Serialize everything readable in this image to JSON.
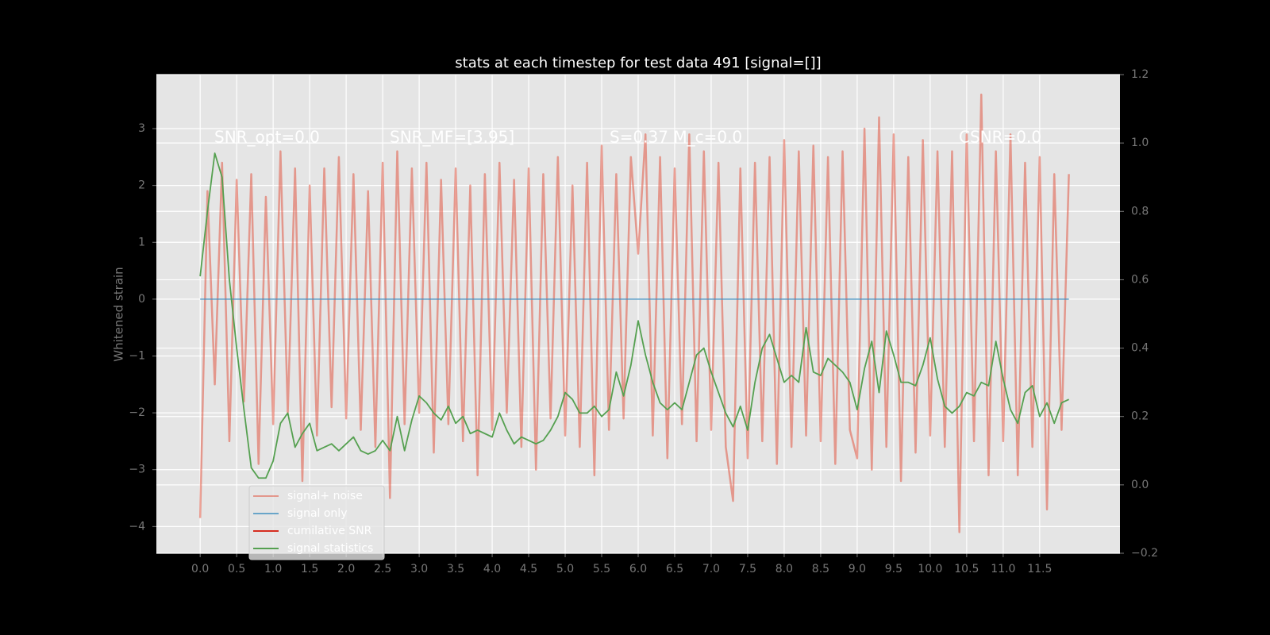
{
  "chart_data": {
    "type": "line",
    "title": "stats at each timestep for test data 491 [signal=[]]",
    "ylabel": "Whitened strain",
    "annotations": [
      "SNR_opt=0.0",
      "SNR_MF=[3.95]",
      "S=0.37  M_c=0.0",
      "CSNR=0.0"
    ],
    "grid": true,
    "legend": "lower left",
    "xlim": [
      -0.6,
      12.6
    ],
    "ylim": [
      -4.47,
      3.95
    ],
    "y2lim": [
      -0.2,
      1.2
    ],
    "xticks": [
      {
        "value": 0,
        "label": "0.0"
      },
      0.5,
      {
        "value": 1,
        "label": "1.0"
      },
      1.5,
      {
        "value": 2,
        "label": "2.0"
      },
      2.5,
      {
        "value": 3,
        "label": "3.0"
      },
      3.5,
      {
        "value": 4,
        "label": "4.0"
      },
      4.5,
      {
        "value": 5,
        "label": "5.0"
      },
      5.5,
      {
        "value": 6,
        "label": "6.0"
      },
      6.5,
      {
        "value": 7,
        "label": "7.0"
      },
      7.5,
      {
        "value": 8,
        "label": "8.0"
      },
      8.5,
      {
        "value": 9,
        "label": "9.0"
      },
      9.5,
      {
        "value": 10,
        "label": "10.0"
      },
      10.5,
      {
        "value": 11,
        "label": "11.0"
      },
      11.5
    ],
    "yticks": [
      {
        "value": -4,
        "label": "−4"
      },
      {
        "value": -3,
        "label": "−3"
      },
      {
        "value": -2,
        "label": "−2"
      },
      {
        "value": -1,
        "label": "−1"
      },
      0,
      1,
      2,
      3
    ],
    "y2ticks": [
      {
        "value": -0.2,
        "label": "−0.2"
      },
      {
        "value": 0,
        "label": "0.0"
      },
      0.2,
      0.4,
      0.6,
      0.8,
      {
        "value": 1,
        "label": "1.0"
      },
      1.2
    ],
    "x": [
      0,
      0.1,
      0.2,
      0.3,
      0.4,
      0.5,
      0.6,
      0.7,
      0.8,
      0.9,
      1,
      1.1,
      1.2,
      1.3,
      1.4,
      1.5,
      1.6,
      1.7,
      1.8,
      1.9,
      2,
      2.1,
      2.2,
      2.3,
      2.4,
      2.5,
      2.6,
      2.7,
      2.8,
      2.9,
      3,
      3.1,
      3.2,
      3.3,
      3.4,
      3.5,
      3.6,
      3.7,
      3.8,
      3.9,
      4,
      4.1,
      4.2,
      4.3,
      4.4,
      4.5,
      4.6,
      4.7,
      4.8,
      4.9,
      5,
      5.1,
      5.2,
      5.3,
      5.4,
      5.5,
      5.6,
      5.7,
      5.8,
      5.9,
      6,
      6.1,
      6.2,
      6.3,
      6.4,
      6.5,
      6.6,
      6.7,
      6.8,
      6.9,
      7,
      7.1,
      7.2,
      7.3,
      7.4,
      7.5,
      7.6,
      7.7,
      7.8,
      7.9,
      8,
      8.1,
      8.2,
      8.3,
      8.4,
      8.5,
      8.6,
      8.7,
      8.8,
      8.9,
      9,
      9.1,
      9.2,
      9.3,
      9.4,
      9.5,
      9.6,
      9.7,
      9.8,
      9.9,
      10,
      10.1,
      10.2,
      10.3,
      10.4,
      10.5,
      10.6,
      10.7,
      10.8,
      10.9,
      11,
      11.1,
      11.2,
      11.3,
      11.4,
      11.5,
      11.6,
      11.7,
      11.8,
      11.9
    ],
    "series": [
      {
        "name": "signal+ noise",
        "color": "#E24A33",
        "opacity": 0.5,
        "values": [
          -3.85,
          1.9,
          -1.5,
          2.4,
          -2.5,
          2.1,
          -1.8,
          2.2,
          -2.9,
          1.8,
          -2.2,
          2.6,
          -2.0,
          2.3,
          -3.2,
          2.0,
          -2.4,
          2.3,
          -1.9,
          2.5,
          -2.1,
          2.2,
          -2.3,
          1.9,
          -2.6,
          2.4,
          -3.5,
          2.6,
          -2.2,
          2.3,
          -2.0,
          2.4,
          -2.7,
          2.1,
          -2.2,
          2.3,
          -2.5,
          2.0,
          -3.1,
          2.2,
          -2.3,
          2.4,
          -2.0,
          2.1,
          -2.6,
          2.3,
          -3.0,
          2.2,
          -2.1,
          2.5,
          -2.4,
          2.0,
          -2.6,
          2.4,
          -3.1,
          2.7,
          -2.3,
          2.2,
          -2.1,
          2.5,
          0.8,
          2.9,
          -2.4,
          2.5,
          -2.8,
          2.3,
          -2.2,
          2.9,
          -2.5,
          2.6,
          -2.3,
          2.4,
          -2.6,
          -3.55,
          2.3,
          -2.8,
          2.4,
          -2.5,
          2.5,
          -2.9,
          2.8,
          -2.6,
          2.6,
          -2.4,
          2.7,
          -2.5,
          2.5,
          -2.9,
          2.6,
          -2.3,
          -2.8,
          3.0,
          -3.0,
          3.2,
          -2.6,
          2.9,
          -3.2,
          2.5,
          -2.7,
          2.8,
          -2.4,
          2.6,
          -2.6,
          2.6,
          -4.1,
          2.9,
          -2.5,
          3.6,
          -3.1,
          2.6,
          -2.5,
          2.9,
          -3.1,
          2.4,
          -2.6,
          2.5,
          -3.7,
          2.2,
          -2.3,
          2.2
        ]
      },
      {
        "name": "signal only",
        "color": "#348ABD",
        "opacity": 0.7,
        "x": [
          0,
          11.9
        ],
        "values": [
          0,
          0
        ]
      },
      {
        "name": "cumilative SNR",
        "color": "#D62D20",
        "opacity": 1,
        "x": [],
        "values": []
      },
      {
        "name": "signal statistics",
        "color": "#55A050",
        "opacity": 1,
        "axis": "y2",
        "values": [
          0.61,
          0.8,
          0.97,
          0.9,
          0.6,
          0.4,
          0.22,
          0.05,
          0.02,
          0.02,
          0.07,
          0.18,
          0.21,
          0.11,
          0.15,
          0.18,
          0.1,
          0.11,
          0.12,
          0.1,
          0.12,
          0.14,
          0.1,
          0.09,
          0.1,
          0.13,
          0.1,
          0.2,
          0.1,
          0.19,
          0.26,
          0.24,
          0.21,
          0.19,
          0.23,
          0.18,
          0.2,
          0.15,
          0.16,
          0.15,
          0.14,
          0.21,
          0.16,
          0.12,
          0.14,
          0.13,
          0.12,
          0.13,
          0.16,
          0.2,
          0.27,
          0.25,
          0.21,
          0.21,
          0.23,
          0.2,
          0.22,
          0.33,
          0.26,
          0.35,
          0.48,
          0.38,
          0.3,
          0.24,
          0.22,
          0.24,
          0.22,
          0.3,
          0.38,
          0.4,
          0.33,
          0.27,
          0.21,
          0.17,
          0.23,
          0.16,
          0.3,
          0.4,
          0.44,
          0.37,
          0.3,
          0.32,
          0.3,
          0.46,
          0.33,
          0.32,
          0.37,
          0.35,
          0.33,
          0.3,
          0.22,
          0.34,
          0.42,
          0.27,
          0.45,
          0.38,
          0.3,
          0.3,
          0.29,
          0.35,
          0.43,
          0.31,
          0.23,
          0.21,
          0.23,
          0.27,
          0.26,
          0.3,
          0.29,
          0.42,
          0.31,
          0.22,
          0.18,
          0.27,
          0.29,
          0.2,
          0.24,
          0.18,
          0.24,
          0.25
        ]
      }
    ]
  }
}
